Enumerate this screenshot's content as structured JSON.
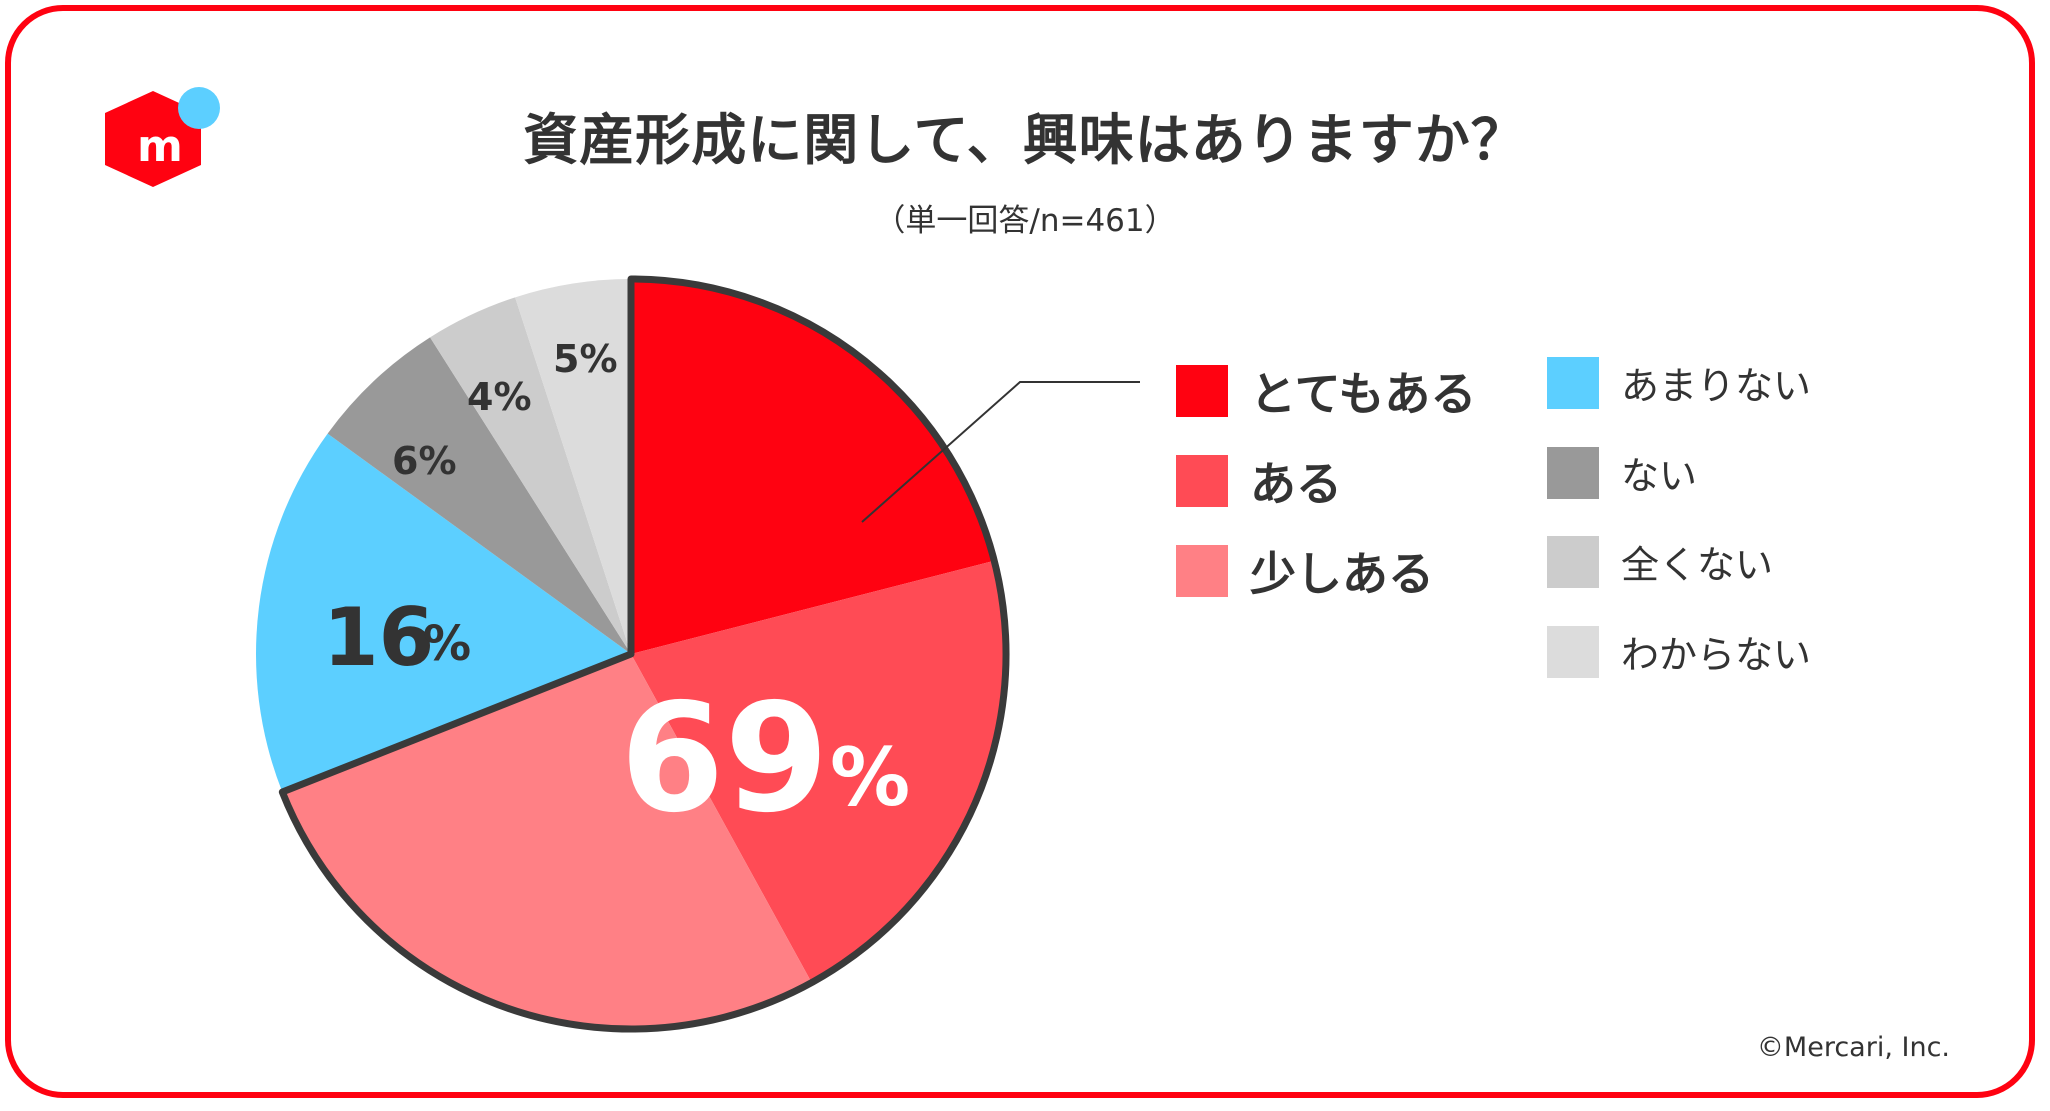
{
  "title": "資産形成に関して、興味はありますか？",
  "subtitle": "（単一回答/n=461）",
  "copyright": "©Mercari, Inc.",
  "logo": {
    "icon": "mercari-logo-icon",
    "letter": "m",
    "primary_color": "#ff0211",
    "dot_color": "#5ccfff"
  },
  "chart_data": {
    "type": "pie",
    "respondents": 461,
    "slices": [
      {
        "name": "とてもある",
        "value": 21,
        "color": "#ff0211"
      },
      {
        "name": "ある",
        "value": 21,
        "color": "#ff4b55"
      },
      {
        "name": "少しある",
        "value": 27,
        "color": "#ff8085"
      },
      {
        "name": "あまりない",
        "value": 16,
        "color": "#5ccfff"
      },
      {
        "name": "ない",
        "value": 6,
        "color": "#999999"
      },
      {
        "name": "全くない",
        "value": 4,
        "color": "#cccccc"
      },
      {
        "name": "わからない",
        "value": 5,
        "color": "#dcdcdc"
      }
    ],
    "labels": {
      "interested_total": "69",
      "percent_sign": "%",
      "amarinai": "16",
      "nai": "6%",
      "mattakunai": "4%",
      "wakaranai": "5%"
    },
    "legend": {
      "left": [
        "とてもある",
        "ある",
        "少しある"
      ],
      "right": [
        "あまりない",
        "ない",
        "全くない",
        "わからない"
      ]
    }
  }
}
